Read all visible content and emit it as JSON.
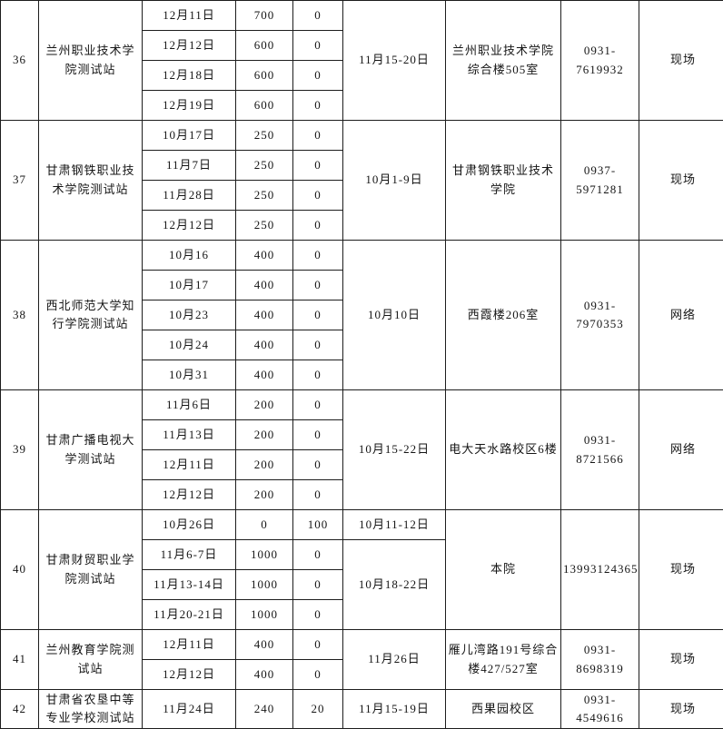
{
  "palette": {
    "background": "#ffffff",
    "border_color": "#1d1d1d",
    "text_color": "#151515"
  },
  "stations": [
    {
      "id": "36",
      "name": "兰州职业技术学\n院测试站",
      "sessions": [
        {
          "date": "12月11日",
          "quota": "700",
          "extra": "0"
        },
        {
          "date": "12月12日",
          "quota": "600",
          "extra": "0"
        },
        {
          "date": "12月18日",
          "quota": "600",
          "extra": "0"
        },
        {
          "date": "12月19日",
          "quota": "600",
          "extra": "0"
        }
      ],
      "signup_periods": [
        {
          "text": "11月15-20日",
          "rows": 4
        }
      ],
      "location": "兰州职业技术学院\n综合楼505室",
      "phone": "0931-\n7619932",
      "method": "现场"
    },
    {
      "id": "37",
      "name": "甘肃钢铁职业技\n术学院测试站",
      "sessions": [
        {
          "date": "10月17日",
          "quota": "250",
          "extra": "0"
        },
        {
          "date": "11月7日",
          "quota": "250",
          "extra": "0"
        },
        {
          "date": "11月28日",
          "quota": "250",
          "extra": "0"
        },
        {
          "date": "12月12日",
          "quota": "250",
          "extra": "0"
        }
      ],
      "signup_periods": [
        {
          "text": "10月1-9日",
          "rows": 4
        }
      ],
      "location": "甘肃钢铁职业技术\n学院",
      "phone": "0937-\n5971281",
      "method": "现场"
    },
    {
      "id": "38",
      "name": "西北师范大学知\n行学院测试站",
      "sessions": [
        {
          "date": "10月16",
          "quota": "400",
          "extra": "0"
        },
        {
          "date": "10月17",
          "quota": "400",
          "extra": "0"
        },
        {
          "date": "10月23",
          "quota": "400",
          "extra": "0"
        },
        {
          "date": "10月24",
          "quota": "400",
          "extra": "0"
        },
        {
          "date": "10月31",
          "quota": "400",
          "extra": "0"
        }
      ],
      "signup_periods": [
        {
          "text": "10月10日",
          "rows": 5
        }
      ],
      "location": "西霞楼206室",
      "phone": "0931-\n7970353",
      "method": "网络"
    },
    {
      "id": "39",
      "name": "甘肃广播电视大\n学测试站",
      "sessions": [
        {
          "date": "11月6日",
          "quota": "200",
          "extra": "0"
        },
        {
          "date": "11月13日",
          "quota": "200",
          "extra": "0"
        },
        {
          "date": "12月11日",
          "quota": "200",
          "extra": "0"
        },
        {
          "date": "12月12日",
          "quota": "200",
          "extra": "0"
        }
      ],
      "signup_periods": [
        {
          "text": "10月15-22日",
          "rows": 4
        }
      ],
      "location": "电大天水路校区6楼",
      "phone": "0931-\n8721566",
      "method": "网络"
    },
    {
      "id": "40",
      "name": "甘肃财贸职业学\n院测试站",
      "sessions": [
        {
          "date": "10月26日",
          "quota": "0",
          "extra": "100"
        },
        {
          "date": "11月6-7日",
          "quota": "1000",
          "extra": "0"
        },
        {
          "date": "11月13-14日",
          "quota": "1000",
          "extra": "0"
        },
        {
          "date": "11月20-21日",
          "quota": "1000",
          "extra": "0"
        }
      ],
      "signup_periods": [
        {
          "text": "10月11-12日",
          "rows": 1
        },
        {
          "text": "10月18-22日",
          "rows": 3
        }
      ],
      "location": "本院",
      "phone": "13993124365",
      "method": "现场"
    },
    {
      "id": "41",
      "name": "兰州教育学院测\n试站",
      "sessions": [
        {
          "date": "12月11日",
          "quota": "400",
          "extra": "0"
        },
        {
          "date": "12月12日",
          "quota": "400",
          "extra": "0"
        }
      ],
      "signup_periods": [
        {
          "text": "11月26日",
          "rows": 2
        }
      ],
      "location": "雁儿湾路191号综合\n楼427/527室",
      "phone": "0931-\n8698319",
      "method": "现场"
    },
    {
      "id": "42",
      "name": "甘肃省农垦中等\n专业学校测试站",
      "sessions": [
        {
          "date": "11月24日",
          "quota": "240",
          "extra": "20"
        }
      ],
      "signup_periods": [
        {
          "text": "11月15-19日",
          "rows": 1
        }
      ],
      "location": "西果园校区",
      "phone": "0931-\n4549616",
      "method": "现场"
    }
  ]
}
